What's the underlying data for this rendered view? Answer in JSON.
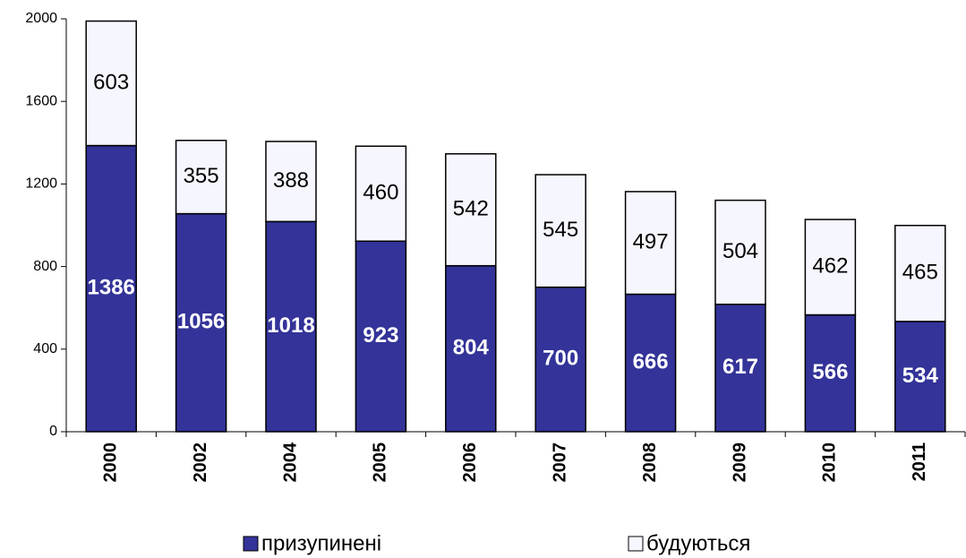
{
  "chart_data": {
    "type": "stacked_bar",
    "categories": [
      "2000",
      "2002",
      "2004",
      "2005",
      "2006",
      "2007",
      "2008",
      "2009",
      "2010",
      "2011"
    ],
    "series": [
      {
        "name": "призупинені",
        "color": "#333399",
        "values": [
          1386,
          1056,
          1018,
          923,
          804,
          700,
          666,
          617,
          566,
          534
        ]
      },
      {
        "name": "будуються",
        "color": "#f6f6ff",
        "values": [
          603,
          355,
          388,
          460,
          542,
          545,
          497,
          504,
          462,
          465
        ]
      }
    ],
    "ylim": [
      0,
      2000
    ],
    "yticks": [
      0,
      400,
      800,
      1200,
      1600,
      2000
    ],
    "legend": "bottom"
  }
}
